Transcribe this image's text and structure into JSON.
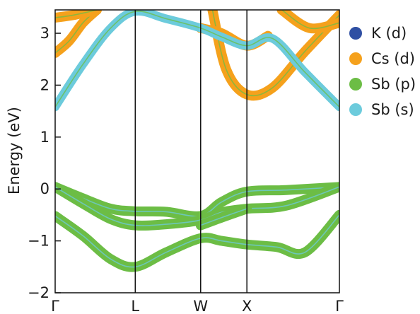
{
  "chart_data": {
    "type": "line",
    "title": "",
    "xlabel": "",
    "ylabel": "Energy (eV)",
    "ylim": [
      -2,
      3.45
    ],
    "yticks": [
      -2,
      -1,
      0,
      1,
      2,
      3
    ],
    "ytick_labels": [
      "−2",
      "−1",
      "0",
      "1",
      "2",
      "3"
    ],
    "kpath": [
      {
        "label": "Γ",
        "x": 0.0
      },
      {
        "label": "L",
        "x": 0.866
      },
      {
        "label": "W",
        "x": 1.573
      },
      {
        "label": "X",
        "x": 2.073
      },
      {
        "label": "Γ",
        "x": 3.073
      }
    ],
    "legend_position": "right",
    "series": [
      {
        "name": "K (d)",
        "color": "#2f4fa3"
      },
      {
        "name": "Cs (d)",
        "color": "#f5a11c"
      },
      {
        "name": "Sb (p)",
        "color": "#6cbd45"
      },
      {
        "name": "Sb (s)",
        "color": "#6ccbdc"
      }
    ],
    "bands": [
      {
        "character": "Sb (s)",
        "x": [
          0.0,
          0.3,
          0.6,
          0.866,
          1.2,
          1.573,
          1.8,
          2.073,
          2.35,
          2.7,
          3.073
        ],
        "y": [
          1.58,
          2.4,
          3.1,
          3.42,
          3.28,
          3.1,
          2.93,
          2.76,
          2.9,
          2.25,
          1.58
        ]
      },
      {
        "character": "Cs (d)",
        "x": [
          1.7,
          1.85,
          2.073,
          2.35,
          2.7,
          3.073
        ],
        "y": [
          3.45,
          2.3,
          1.82,
          1.95,
          2.65,
          3.35
        ]
      },
      {
        "character": "Cs (d)",
        "x": [
          0.0,
          0.15,
          0.3,
          0.45
        ],
        "y": [
          2.62,
          2.85,
          3.2,
          3.45
        ]
      },
      {
        "character": "Cs (d)",
        "x": [
          0.0,
          0.2,
          0.45
        ],
        "y": [
          3.3,
          3.35,
          3.45
        ]
      },
      {
        "character": "Cs (d)",
        "x": [
          1.573,
          1.8,
          2.073,
          2.3
        ],
        "y": [
          3.1,
          3.0,
          2.76,
          2.95
        ]
      },
      {
        "character": "Cs (d)",
        "x": [
          2.45,
          2.75,
          3.073
        ],
        "y": [
          3.45,
          3.1,
          3.2
        ]
      },
      {
        "character": "Sb (p)",
        "x": [
          0.0,
          0.3,
          0.6,
          0.866,
          1.2,
          1.573,
          1.8,
          2.073,
          2.5,
          3.073
        ],
        "y": [
          0.04,
          -0.18,
          -0.38,
          -0.43,
          -0.44,
          -0.52,
          -0.25,
          -0.05,
          -0.02,
          0.04
        ]
      },
      {
        "character": "Sb (p)",
        "x": [
          0.0,
          0.3,
          0.6,
          0.866,
          1.2,
          1.573,
          1.8,
          2.073,
          2.5,
          3.073
        ],
        "y": [
          0.04,
          -0.28,
          -0.58,
          -0.7,
          -0.68,
          -0.6,
          -0.45,
          -0.38,
          -0.32,
          0.04
        ]
      },
      {
        "character": "Sb (p)",
        "x": [
          0.0,
          0.3,
          0.6,
          0.866,
          1.2,
          1.573,
          1.8,
          2.073,
          2.4,
          2.7,
          3.073
        ],
        "y": [
          -0.52,
          -0.9,
          -1.35,
          -1.5,
          -1.22,
          -0.95,
          -1.0,
          -1.07,
          -1.12,
          -1.22,
          -0.5
        ]
      },
      {
        "character": "Sb (p)",
        "x": [
          1.573,
          1.8,
          2.073
        ],
        "y": [
          -0.7,
          -0.55,
          -0.38
        ]
      }
    ]
  }
}
